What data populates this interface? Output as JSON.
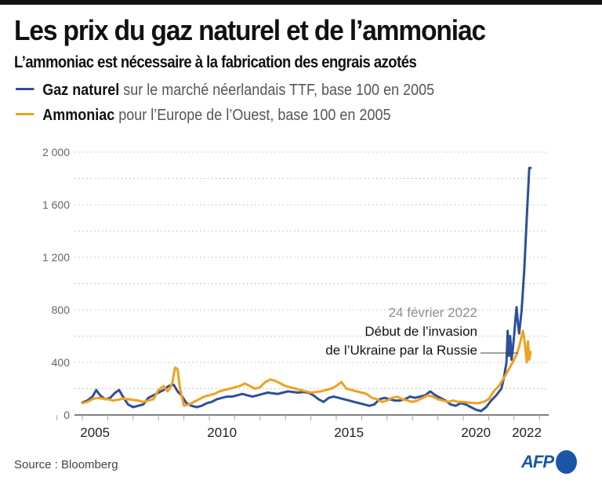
{
  "title": "Les prix du gaz naturel et de l’ammoniac",
  "subtitle": "L’ammoniac est nécessaire à la fabrication des engrais azotés",
  "legend": [
    {
      "bold": "Gaz naturel",
      "rest": " sur le marché néerlandais TTF, base 100 en 2005",
      "color": "#2e4f9a"
    },
    {
      "bold": "Ammoniac",
      "rest": " pour l’Europe de l’Ouest, base 100 en 2005",
      "color": "#f0a11e"
    }
  ],
  "annotation": {
    "date": "24 février 2022",
    "line1": "Début de l’invasion",
    "line2": "de l’Ukraine par la Russie",
    "x": 2022.15
  },
  "source": "Source : Bloomberg",
  "logo": "AFP",
  "chart_data": {
    "type": "line",
    "title": "Les prix du gaz naturel et de l’ammoniac",
    "xlabel": "",
    "ylabel": "",
    "xlim": [
      2004.7,
      2023.35
    ],
    "ylim": [
      0,
      2000
    ],
    "yticks": [
      0,
      400,
      800,
      1200,
      1600,
      2000
    ],
    "ytick_labels": [
      "0",
      "400",
      "800",
      "1 200",
      "1 600",
      "2 000"
    ],
    "minor_gridlines": [
      200,
      600,
      1000,
      1400,
      1800
    ],
    "xticks": [
      2004,
      2005,
      2006,
      2007,
      2008,
      2009,
      2010,
      2011,
      2012,
      2013,
      2014,
      2015,
      2016,
      2017,
      2018,
      2019,
      2020,
      2021,
      2022,
      2023
    ],
    "xtick_labels": [
      {
        "label": "2005",
        "at": 2005.5
      },
      {
        "label": "2010",
        "at": 2010.5
      },
      {
        "label": "2015",
        "at": 2015.5
      },
      {
        "label": "2020",
        "at": 2020.5
      },
      {
        "label": "2022",
        "at": 2022.5
      }
    ],
    "grid": true,
    "series": [
      {
        "name": "Gaz naturel",
        "color": "#2e4f9a",
        "x": [
          2005.0,
          2005.2,
          2005.4,
          2005.55,
          2005.7,
          2005.9,
          2006.1,
          2006.3,
          2006.45,
          2006.6,
          2006.8,
          2007.0,
          2007.2,
          2007.4,
          2007.6,
          2007.8,
          2008.0,
          2008.2,
          2008.4,
          2008.6,
          2008.75,
          2008.9,
          2009.1,
          2009.3,
          2009.5,
          2009.7,
          2009.9,
          2010.1,
          2010.3,
          2010.5,
          2010.7,
          2010.9,
          2011.1,
          2011.3,
          2011.5,
          2011.7,
          2011.9,
          2012.1,
          2012.3,
          2012.5,
          2012.7,
          2012.9,
          2013.1,
          2013.3,
          2013.5,
          2013.7,
          2013.9,
          2014.1,
          2014.3,
          2014.5,
          2014.7,
          2014.9,
          2015.1,
          2015.3,
          2015.5,
          2015.7,
          2015.9,
          2016.1,
          2016.3,
          2016.5,
          2016.7,
          2016.9,
          2017.1,
          2017.3,
          2017.5,
          2017.7,
          2017.9,
          2018.1,
          2018.3,
          2018.5,
          2018.7,
          2018.9,
          2019.1,
          2019.3,
          2019.5,
          2019.7,
          2019.9,
          2020.1,
          2020.3,
          2020.5,
          2020.7,
          2020.9,
          2021.1,
          2021.3,
          2021.5,
          2021.6,
          2021.7,
          2021.75,
          2021.8,
          2021.85,
          2021.9,
          2021.95,
          2022.0,
          2022.05,
          2022.1,
          2022.15,
          2022.2,
          2022.3,
          2022.4,
          2022.5,
          2022.6,
          2022.65
        ],
        "values": [
          95,
          110,
          140,
          190,
          150,
          120,
          130,
          170,
          190,
          140,
          80,
          60,
          70,
          80,
          130,
          150,
          170,
          190,
          220,
          230,
          180,
          150,
          90,
          70,
          60,
          70,
          90,
          100,
          120,
          130,
          140,
          140,
          150,
          160,
          150,
          140,
          150,
          160,
          170,
          165,
          160,
          170,
          180,
          175,
          170,
          175,
          170,
          150,
          120,
          100,
          130,
          140,
          130,
          120,
          110,
          100,
          90,
          80,
          70,
          80,
          120,
          130,
          120,
          110,
          110,
          120,
          140,
          130,
          140,
          150,
          180,
          150,
          130,
          110,
          80,
          70,
          90,
          80,
          60,
          40,
          30,
          60,
          110,
          150,
          200,
          280,
          400,
          640,
          450,
          600,
          420,
          500,
          600,
          720,
          820,
          700,
          620,
          800,
          1100,
          1500,
          1880,
          1880
        ]
      },
      {
        "name": "Ammoniac",
        "color": "#f0a11e",
        "x": [
          2005.0,
          2005.2,
          2005.4,
          2005.6,
          2005.8,
          2006.0,
          2006.2,
          2006.4,
          2006.6,
          2006.8,
          2007.0,
          2007.2,
          2007.4,
          2007.6,
          2007.8,
          2008.0,
          2008.2,
          2008.35,
          2008.45,
          2008.55,
          2008.65,
          2008.75,
          2008.85,
          2009.0,
          2009.2,
          2009.4,
          2009.6,
          2009.8,
          2010.0,
          2010.2,
          2010.4,
          2010.6,
          2010.8,
          2011.0,
          2011.2,
          2011.4,
          2011.6,
          2011.8,
          2012.0,
          2012.2,
          2012.4,
          2012.6,
          2012.8,
          2013.0,
          2013.2,
          2013.4,
          2013.6,
          2013.8,
          2014.0,
          2014.2,
          2014.4,
          2014.6,
          2014.8,
          2015.0,
          2015.2,
          2015.4,
          2015.6,
          2015.8,
          2016.0,
          2016.2,
          2016.4,
          2016.6,
          2016.8,
          2017.0,
          2017.2,
          2017.4,
          2017.6,
          2017.8,
          2018.0,
          2018.2,
          2018.4,
          2018.6,
          2018.8,
          2019.0,
          2019.2,
          2019.4,
          2019.6,
          2019.8,
          2020.0,
          2020.2,
          2020.4,
          2020.6,
          2020.8,
          2021.0,
          2021.2,
          2021.4,
          2021.6,
          2021.8,
          2022.0,
          2022.1,
          2022.2,
          2022.3,
          2022.35,
          2022.4,
          2022.45,
          2022.5,
          2022.55,
          2022.6,
          2022.65
        ],
        "values": [
          90,
          100,
          120,
          130,
          125,
          120,
          110,
          115,
          125,
          120,
          115,
          110,
          100,
          110,
          120,
          190,
          220,
          180,
          200,
          250,
          360,
          350,
          200,
          70,
          80,
          100,
          120,
          140,
          150,
          160,
          180,
          190,
          200,
          210,
          220,
          240,
          220,
          200,
          210,
          250,
          270,
          260,
          240,
          220,
          210,
          200,
          190,
          180,
          170,
          175,
          180,
          190,
          200,
          220,
          250,
          200,
          190,
          180,
          170,
          160,
          130,
          120,
          100,
          110,
          130,
          140,
          120,
          110,
          100,
          110,
          130,
          150,
          140,
          120,
          110,
          100,
          110,
          100,
          100,
          95,
          90,
          90,
          100,
          120,
          180,
          220,
          280,
          350,
          420,
          460,
          520,
          600,
          640,
          580,
          500,
          400,
          560,
          420,
          480
        ]
      }
    ]
  }
}
